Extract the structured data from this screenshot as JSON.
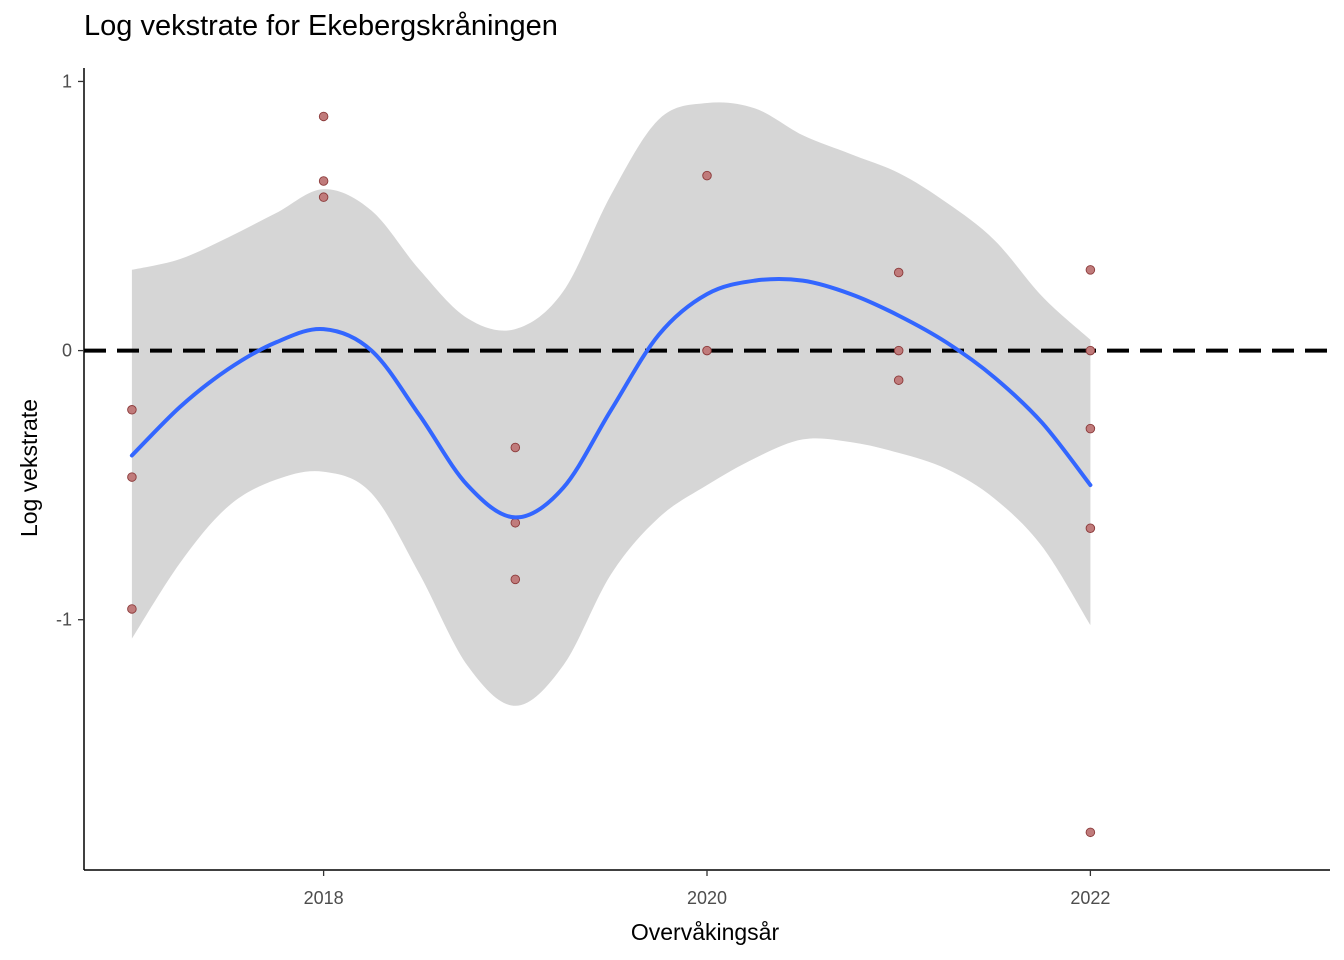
{
  "chart_data": {
    "type": "scatter",
    "title": "Log vekstrate for Ekebergskråningen",
    "xlabel": "Overvåkingsår",
    "ylabel": "Log vekstrate",
    "xlim": [
      2016.75,
      2023.25
    ],
    "ylim": [
      -1.93,
      1.05
    ],
    "x_ticks": [
      2018,
      2020,
      2022
    ],
    "x_tick_labels": [
      "2018",
      "2020",
      "2022"
    ],
    "y_ticks": [
      -1,
      0,
      1
    ],
    "y_tick_labels": [
      "-1",
      "0",
      "1"
    ],
    "grid": false,
    "reference_line": {
      "y": 0,
      "style": "dashed",
      "color": "#000000"
    },
    "colors": {
      "points_fill": "#c07b7b",
      "points_stroke": "#8b3a3a",
      "smooth_line": "#3366ff",
      "confidence_band": "#d6d6d6"
    },
    "points": [
      {
        "x": 2017,
        "y": -0.22
      },
      {
        "x": 2017,
        "y": -0.47
      },
      {
        "x": 2017,
        "y": -0.96
      },
      {
        "x": 2018,
        "y": 0.87
      },
      {
        "x": 2018,
        "y": 0.63
      },
      {
        "x": 2018,
        "y": 0.57
      },
      {
        "x": 2019,
        "y": -0.36
      },
      {
        "x": 2019,
        "y": -0.64
      },
      {
        "x": 2019,
        "y": -0.85
      },
      {
        "x": 2020,
        "y": 0.65
      },
      {
        "x": 2020,
        "y": 0.0
      },
      {
        "x": 2021,
        "y": 0.29
      },
      {
        "x": 2021,
        "y": 0.0
      },
      {
        "x": 2021,
        "y": -0.11
      },
      {
        "x": 2022,
        "y": 0.3
      },
      {
        "x": 2022,
        "y": 0.0
      },
      {
        "x": 2022,
        "y": -0.29
      },
      {
        "x": 2022,
        "y": -0.66
      },
      {
        "x": 2022,
        "y": -1.79
      }
    ],
    "smooth": {
      "x": [
        2017,
        2017.25,
        2017.5,
        2017.75,
        2018,
        2018.25,
        2018.5,
        2018.75,
        2019,
        2019.25,
        2019.5,
        2019.75,
        2020,
        2020.25,
        2020.5,
        2020.75,
        2021,
        2021.25,
        2021.5,
        2021.75,
        2022
      ],
      "y": [
        -0.39,
        -0.21,
        -0.07,
        0.03,
        0.08,
        0.0,
        -0.24,
        -0.5,
        -0.62,
        -0.51,
        -0.22,
        0.06,
        0.21,
        0.26,
        0.26,
        0.21,
        0.13,
        0.03,
        -0.1,
        -0.27,
        -0.5
      ],
      "upper": [
        0.3,
        0.34,
        0.42,
        0.51,
        0.6,
        0.52,
        0.3,
        0.12,
        0.08,
        0.22,
        0.58,
        0.86,
        0.92,
        0.9,
        0.8,
        0.73,
        0.66,
        0.55,
        0.41,
        0.2,
        0.04
      ],
      "lower": [
        -1.07,
        -0.79,
        -0.58,
        -0.48,
        -0.45,
        -0.53,
        -0.83,
        -1.17,
        -1.32,
        -1.17,
        -0.83,
        -0.62,
        -0.5,
        -0.4,
        -0.33,
        -0.34,
        -0.38,
        -0.44,
        -0.55,
        -0.73,
        -1.02
      ]
    }
  }
}
